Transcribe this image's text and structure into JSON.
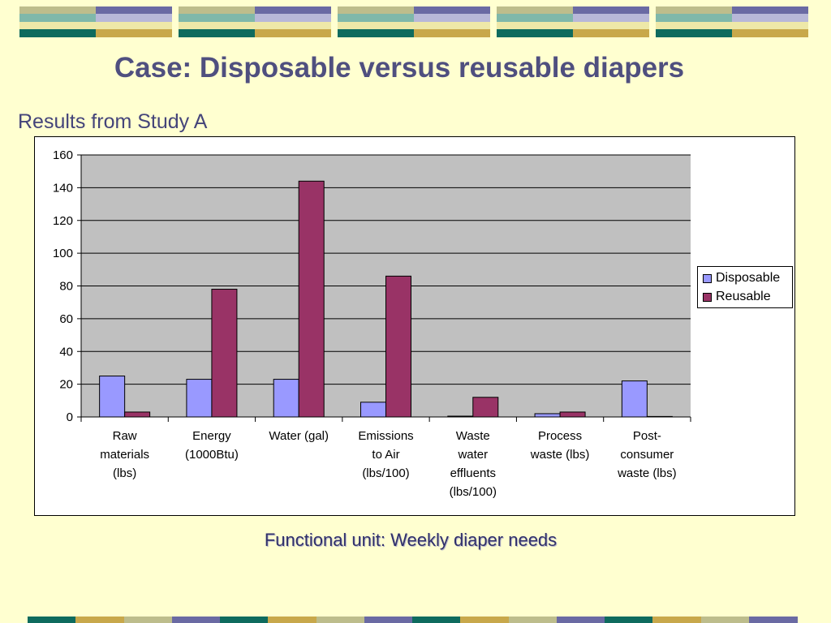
{
  "slide": {
    "title": "Case: Disposable versus reusable diapers",
    "subtitle": "Results from Study A",
    "footer": "Functional unit: Weekly diaper needs"
  },
  "colors": {
    "background": "#FFFFD0",
    "teal": "#0E6B5E",
    "gold": "#C8A84B",
    "slate": "#6A6AA3",
    "olive": "#BDBD8C",
    "light_teal": "#7FB8AA",
    "pale_yellow": "#EEE8A8",
    "pale_slate": "#B8B8D8",
    "disposable_bar": "#9999FF",
    "reusable_bar": "#993366",
    "plot_area": "#C0C0C0"
  },
  "chart_data": {
    "type": "bar",
    "categories": [
      [
        "Raw",
        "materials",
        "(lbs)"
      ],
      [
        "Energy",
        "(1000Btu)"
      ],
      [
        "Water (gal)"
      ],
      [
        "Emissions",
        "to Air",
        "(lbs/100)"
      ],
      [
        "Waste",
        "water",
        "effluents",
        "(lbs/100)"
      ],
      [
        "Process",
        "waste (lbs)"
      ],
      [
        "Post-",
        "consumer",
        "waste (lbs)"
      ]
    ],
    "series": [
      {
        "name": "Disposable",
        "values": [
          25,
          23,
          23,
          9,
          0.5,
          2,
          22
        ]
      },
      {
        "name": "Reusable",
        "values": [
          3,
          78,
          144,
          86,
          12,
          3,
          0.3
        ]
      }
    ],
    "ylim": [
      0,
      160
    ],
    "yticks": [
      "0",
      "20",
      "40",
      "60",
      "80",
      "100",
      "120",
      "140",
      "160"
    ],
    "grid": true,
    "legend": "right"
  }
}
